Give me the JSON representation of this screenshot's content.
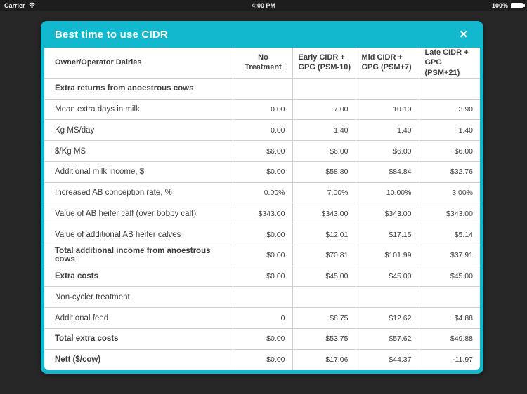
{
  "status_bar": {
    "carrier": "Carrier",
    "time": "4:00 PM",
    "battery_percent": "100%"
  },
  "modal": {
    "title": "Best time to use CIDR",
    "close_icon": "✕"
  },
  "colors": {
    "accent_teal": "#12b8cd",
    "backdrop": "#272727",
    "status_bar_bg": "#1d1d1d",
    "table_text": "#3d3d3d",
    "grid_border": "#cfcfcf",
    "table_bg": "#ffffff"
  },
  "table": {
    "columns": [
      "Owner/Operator Dairies",
      "No Treatment",
      "Early CIDR +\nGPG (PSM-10)",
      "Mid CIDR +\nGPG (PSM+7)",
      "Late CIDR +\nGPG (PSM+21)"
    ],
    "rows": [
      {
        "label": "Extra returns from anoestrous cows",
        "bold": true,
        "values": [
          "",
          "",
          "",
          ""
        ]
      },
      {
        "label": "Mean extra days in milk",
        "bold": false,
        "values": [
          "0.00",
          "7.00",
          "10.10",
          "3.90"
        ]
      },
      {
        "label": "Kg MS/day",
        "bold": false,
        "values": [
          "0.00",
          "1.40",
          "1.40",
          "1.40"
        ]
      },
      {
        "label": "$/Kg MS",
        "bold": false,
        "values": [
          "$6.00",
          "$6.00",
          "$6.00",
          "$6.00"
        ]
      },
      {
        "label": "Additional milk income, $",
        "bold": false,
        "values": [
          "$0.00",
          "$58.80",
          "$84.84",
          "$32.76"
        ]
      },
      {
        "label": "Increased AB conception rate, %",
        "bold": false,
        "values": [
          "0.00%",
          "7.00%",
          "10.00%",
          "3.00%"
        ]
      },
      {
        "label": "Value of AB heifer calf (over bobby calf)",
        "bold": false,
        "values": [
          "$343.00",
          "$343.00",
          "$343.00",
          "$343.00"
        ]
      },
      {
        "label": "Value of additional AB heifer calves",
        "bold": false,
        "values": [
          "$0.00",
          "$12.01",
          "$17.15",
          "$5.14"
        ]
      },
      {
        "label": "Total additional income from anoestrous cows",
        "bold": true,
        "values": [
          "$0.00",
          "$70.81",
          "$101.99",
          "$37.91"
        ]
      },
      {
        "label": "Extra costs",
        "bold": true,
        "values": [
          "$0.00",
          "$45.00",
          "$45.00",
          "$45.00"
        ]
      },
      {
        "label": "Non-cycler treatment",
        "bold": false,
        "values": [
          "",
          "",
          "",
          ""
        ]
      },
      {
        "label": "Additional feed",
        "bold": false,
        "values": [
          "0",
          "$8.75",
          "$12.62",
          "$4.88"
        ]
      },
      {
        "label": "Total extra costs",
        "bold": true,
        "values": [
          "$0.00",
          "$53.75",
          "$57.62",
          "$49.88"
        ]
      },
      {
        "label": "Nett ($/cow)",
        "bold": true,
        "values": [
          "$0.00",
          "$17.06",
          "$44.37",
          "-11.97"
        ]
      }
    ]
  }
}
